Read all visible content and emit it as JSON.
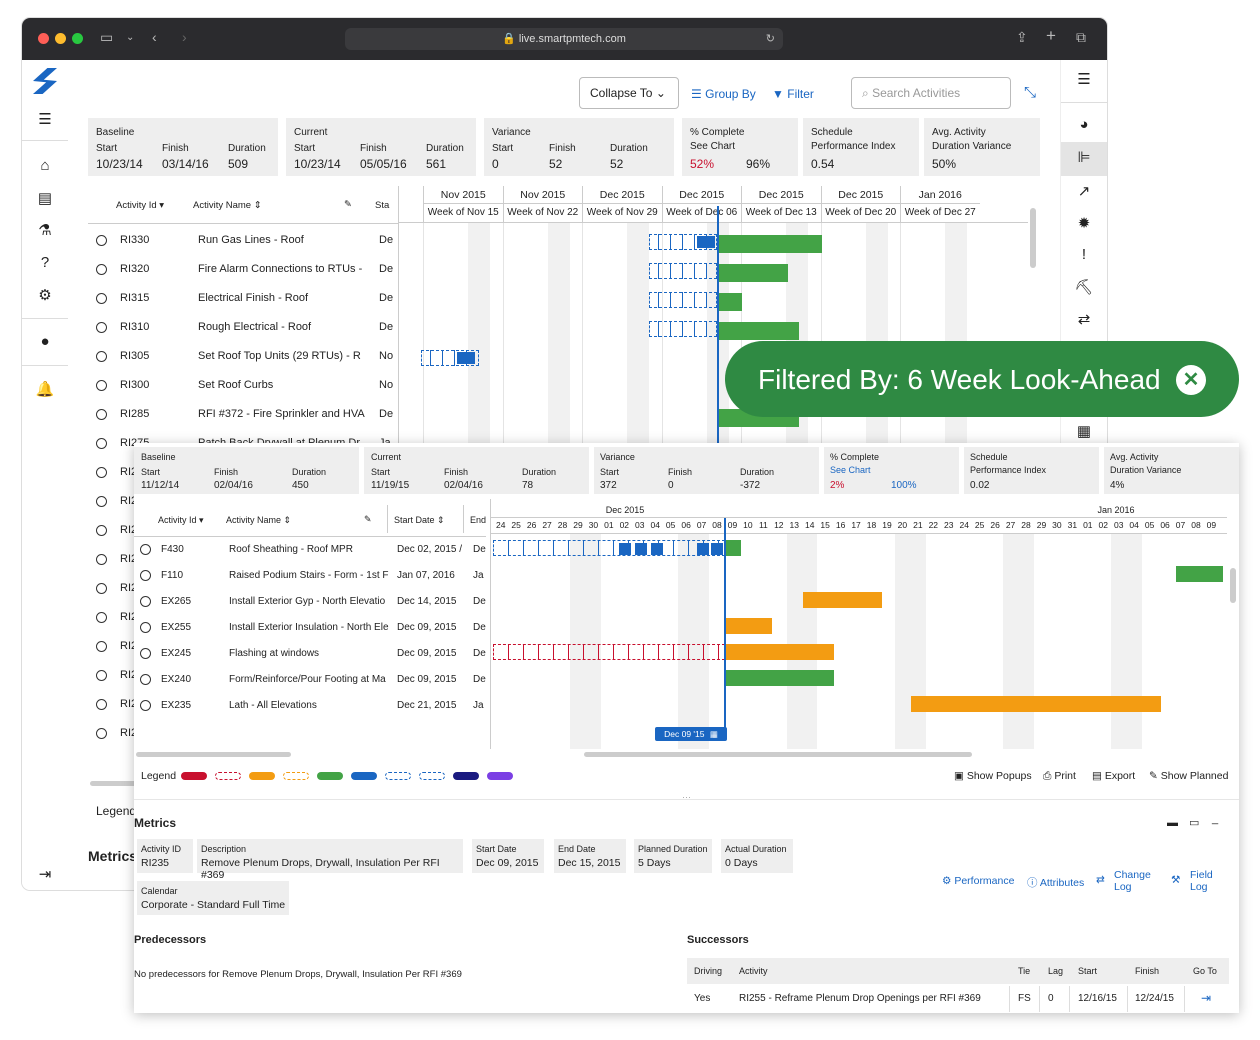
{
  "browser": {
    "url": "live.smartpmtech.com"
  },
  "toolbar": {
    "collapse": "Collapse To",
    "group_by": "Group By",
    "filter": "Filter",
    "search_placeholder": "Search Activities"
  },
  "summary": {
    "baseline": {
      "title": "Baseline",
      "start_l": "Start",
      "finish_l": "Finish",
      "duration_l": "Duration",
      "start": "10/23/14",
      "finish": "03/14/16",
      "duration": "509"
    },
    "current": {
      "title": "Current",
      "start_l": "Start",
      "finish_l": "Finish",
      "duration_l": "Duration",
      "start": "10/23/14",
      "finish": "05/05/16",
      "duration": "561"
    },
    "variance": {
      "title": "Variance",
      "start_l": "Start",
      "finish_l": "Finish",
      "duration_l": "Duration",
      "start": "0",
      "finish": "52",
      "duration": "52"
    },
    "complete": {
      "title": "% Complete",
      "link": "See Chart",
      "a": "52%",
      "b": "96%"
    },
    "spi": {
      "title": "Schedule",
      "sub": "Performance Index",
      "value": "0.54"
    },
    "adv": {
      "title": "Avg. Activity",
      "sub": "Duration Variance",
      "value": "50%"
    }
  },
  "grid1": {
    "col_id": "Activity Id",
    "col_name": "Activity Name",
    "col_start": "Sta",
    "rows": [
      {
        "id": "RI330",
        "name": "Run Gas Lines - Roof",
        "s": "De"
      },
      {
        "id": "RI320",
        "name": "Fire Alarm Connections to RTUs -",
        "s": "De"
      },
      {
        "id": "RI315",
        "name": "Electrical Finish - Roof",
        "s": "De"
      },
      {
        "id": "RI310",
        "name": "Rough Electrical - Roof",
        "s": "De"
      },
      {
        "id": "RI305",
        "name": "Set Roof Top Units (29 RTUs) - R",
        "s": "No"
      },
      {
        "id": "RI300",
        "name": "Set Roof Curbs",
        "s": "No"
      },
      {
        "id": "RI285",
        "name": "RFI #372 - Fire Sprinkler and HVA",
        "s": "De"
      },
      {
        "id": "RI275",
        "name": "Patch Back Drywall at Plenum Dr",
        "s": "Ja"
      }
    ],
    "stub_rows": [
      "RI2",
      "RI2",
      "RI2",
      "RI2",
      "RI2",
      "RI2",
      "RI2",
      "RI2",
      "RI2",
      "RI2"
    ]
  },
  "gantt1": {
    "months": [
      "Nov 2015",
      "Nov 2015",
      "Dec 2015",
      "Dec 2015",
      "Dec 2015",
      "Dec 2015",
      "Jan 2016"
    ],
    "weeks": [
      "Week of Nov 15",
      "Week of Nov 22",
      "Week of Nov 29",
      "Week of Dec 06",
      "Week of Dec 13",
      "Week of Dec 20",
      "Week of Dec 27"
    ]
  },
  "filter_pill": {
    "text": "Filtered By: 6 Week Look-Ahead"
  },
  "summary2": {
    "baseline": {
      "title": "Baseline",
      "start_l": "Start",
      "finish_l": "Finish",
      "duration_l": "Duration",
      "start": "11/12/14",
      "finish": "02/04/16",
      "duration": "450"
    },
    "current": {
      "title": "Current",
      "start_l": "Start",
      "finish_l": "Finish",
      "duration_l": "Duration",
      "start": "11/19/15",
      "finish": "02/04/16",
      "duration": "78"
    },
    "variance": {
      "title": "Variance",
      "start_l": "Start",
      "finish_l": "Finish",
      "duration_l": "Duration",
      "start": "372",
      "finish": "0",
      "duration": "-372"
    },
    "complete": {
      "title": "% Complete",
      "link": "See Chart",
      "a": "2%",
      "b": "100%"
    },
    "spi": {
      "title": "Schedule",
      "sub": "Performance Index",
      "value": "0.02"
    },
    "adv": {
      "title": "Avg. Activity",
      "sub": "Duration Variance",
      "value": "4%"
    }
  },
  "grid2": {
    "col_id": "Activity Id",
    "col_name": "Activity Name",
    "col_start": "Start Date",
    "col_end": "End",
    "rows": [
      {
        "id": "F430",
        "name": "Roof Sheathing - Roof MPR",
        "start": "Dec 02, 2015 /",
        "e": "De"
      },
      {
        "id": "F110",
        "name": "Raised Podium Stairs - Form - 1st F",
        "start": "Jan 07, 2016",
        "e": "Ja"
      },
      {
        "id": "EX265",
        "name": "Install Exterior Gyp - North Elevatio",
        "start": "Dec 14, 2015",
        "e": "De"
      },
      {
        "id": "EX255",
        "name": "Install Exterior Insulation - North Ele",
        "start": "Dec 09, 2015",
        "e": "De"
      },
      {
        "id": "EX245",
        "name": "Flashing at windows",
        "start": "Dec 09, 2015",
        "e": "De"
      },
      {
        "id": "EX240",
        "name": "Form/Reinforce/Pour Footing at Ma",
        "start": "Dec 09, 2015",
        "e": "De"
      },
      {
        "id": "EX235",
        "name": "Lath - All Elevations",
        "start": "Dec 21, 2015",
        "e": "Ja"
      }
    ]
  },
  "gantt2": {
    "month_a": "Dec 2015",
    "month_b": "Jan 2016",
    "days": [
      "24",
      "25",
      "26",
      "27",
      "28",
      "29",
      "30",
      "01",
      "02",
      "03",
      "04",
      "05",
      "06",
      "07",
      "08",
      "09",
      "10",
      "11",
      "12",
      "13",
      "14",
      "15",
      "16",
      "17",
      "18",
      "19",
      "20",
      "21",
      "22",
      "23",
      "24",
      "25",
      "26",
      "27",
      "28",
      "29",
      "30",
      "31",
      "01",
      "02",
      "03",
      "04",
      "05",
      "06",
      "07",
      "08",
      "09"
    ],
    "today_label": "Dec 09 '15"
  },
  "legend": {
    "label": "Legend",
    "show_popups": "Show Popups",
    "print": "Print",
    "export": "Export",
    "show_planned": "Show Planned",
    "colors": [
      "#c8102e",
      "#c8102e",
      "#f39c12",
      "#f39c12",
      "#43a346",
      "#1a66c2",
      "#1a66c2",
      "#1a66c2",
      "#1a1a80",
      "#7b3fe4"
    ]
  },
  "bg_left": {
    "legend": "Legend",
    "metrics": "Metrics"
  },
  "metrics": {
    "title": "Metrics",
    "activity_id_l": "Activity ID",
    "activity_id": "RI235",
    "description_l": "Description",
    "description": "Remove Plenum Drops, Drywall, Insulation Per RFI #369",
    "start_l": "Start Date",
    "start": "Dec 09, 2015",
    "end_l": "End Date",
    "end": "Dec 15, 2015",
    "planned_l": "Planned Duration",
    "planned": "5 Days",
    "actual_l": "Actual Duration",
    "actual": "0 Days",
    "calendar_l": "Calendar",
    "calendar": "Corporate - Standard Full Time",
    "performance": "Performance",
    "attributes": "Attributes",
    "change_log_1": "Change",
    "change_log_2": "Log",
    "field_log_1": "Field",
    "field_log_2": "Log"
  },
  "predecessors": {
    "title": "Predecessors",
    "empty": "No predecessors for Remove Plenum Drops, Drywall, Insulation Per RFI #369"
  },
  "successors": {
    "title": "Successors",
    "h_driving": "Driving",
    "h_activity": "Activity",
    "h_tie": "Tie",
    "h_lag": "Lag",
    "h_start": "Start",
    "h_finish": "Finish",
    "h_goto": "Go To",
    "row": {
      "driving": "Yes",
      "activity": "RI255 - Reframe Plenum Drop Openings per RFI #369",
      "tie": "FS",
      "lag": "0",
      "start": "12/16/15",
      "finish": "12/24/15"
    }
  }
}
